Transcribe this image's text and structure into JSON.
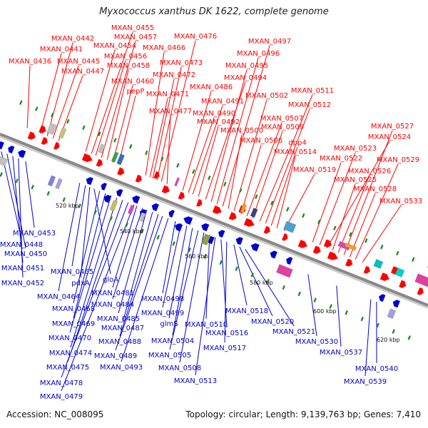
{
  "title": "Myxococcus xanthus DK 1622, complete genome",
  "accession": "Accession: NC_008095",
  "summary": "Topology: circular; Length: 9,139,763 bp; Genes: 7,410",
  "colors": {
    "forward": "#ff0000",
    "reverse": "#0000cc",
    "backbone": "#888888",
    "scale": "#228b22"
  },
  "scale_labels": [
    "520 kbp",
    "540 kbp",
    "560 kbp",
    "580 kbp",
    "600 kbp",
    "620 kbp"
  ],
  "forward_labels": [
    "MXAN_0436",
    "MXAN_0441",
    "MXAN_0442",
    "MXAN_0445",
    "MXAN_0447",
    "MXAN_0454",
    "MXAN_0455",
    "MXAN_0456",
    "MXAN_0457",
    "MXAN_0458",
    "MXAN_0460",
    "pepP",
    "MXAN_0466",
    "MXAN_0471",
    "MXAN_0472",
    "MXAN_0473",
    "MXAN_0476",
    "MXAN_0477",
    "MXAN_0486",
    "MXAN_0490",
    "MXAN_0491",
    "MXAN_0492",
    "MXAN_0494",
    "MXAN_0495",
    "MXAN_0496",
    "MXAN_0497",
    "MXAN_0500",
    "MXAN_0502",
    "MXAN_0506",
    "MXAN_0507",
    "MXAN_0509",
    "MXAN_0511",
    "MXAN_0512",
    "dpp4",
    "MXAN_0514",
    "MXAN_0519",
    "MXAN_0522",
    "MXAN_0523",
    "MXAN_0524",
    "MXAN_0525",
    "MXAN_0526",
    "MXAN_0527",
    "MXAN_0528",
    "MXAN_0529",
    "MXAN_0533"
  ],
  "reverse_labels": [
    "MXAN_0448",
    "MXAN_0450",
    "MXAN_0451",
    "MXAN_0452",
    "MXAN_0453",
    "MXAN_0464",
    "MXAN_0465",
    "pdxA",
    "gloA",
    "MXAN_0468",
    "MXAN_0469",
    "MXAN_0470",
    "MXAN_0474",
    "MXAN_0475",
    "MXAN_0478",
    "MXAN_0479",
    "MXAN_0481",
    "MXAN_0484",
    "MXAN_0485",
    "MXAN_0487",
    "MXAN_0488",
    "MXAN_0489",
    "MXAN_0493",
    "MXAN_0498",
    "MXAN_0499",
    "glmS",
    "MXAN_0504",
    "MXAN_0505",
    "MXAN_0508",
    "MXAN_0510",
    "MXAN_0513",
    "MXAN_0516",
    "MXAN_0517",
    "MXAN_0518",
    "MXAN_0520",
    "MXAN_0521",
    "MXAN_0530",
    "MXAN_0537",
    "MXAN_0539",
    "MXAN_0540"
  ]
}
